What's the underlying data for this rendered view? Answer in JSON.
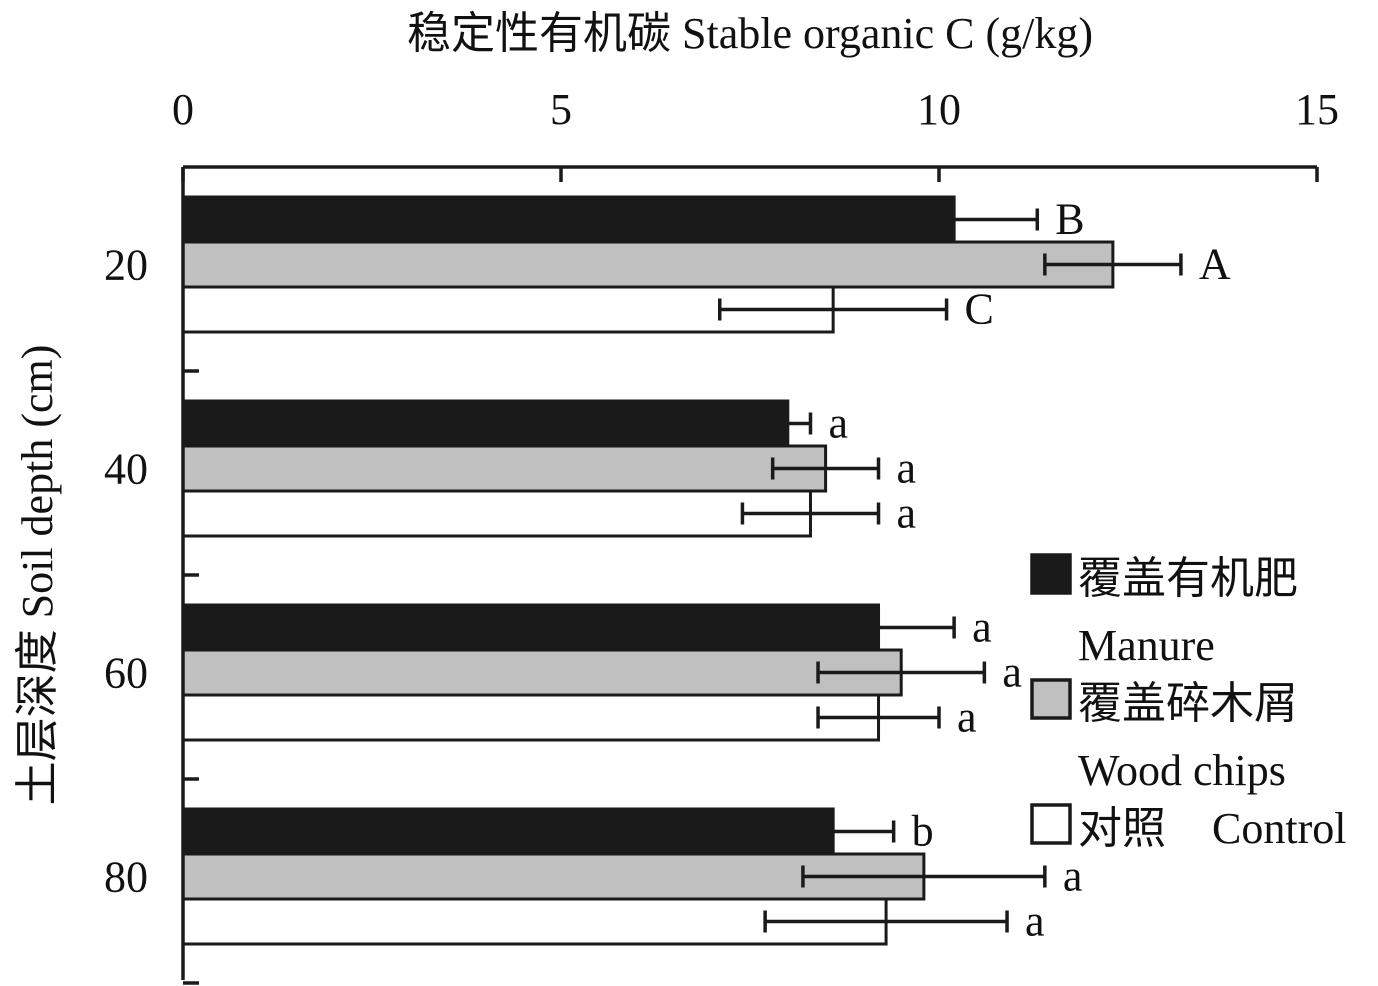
{
  "chart_data": {
    "type": "bar",
    "orientation": "horizontal",
    "title": "",
    "xlabel": "稳定性有机碳 Stable organic C (g/kg)",
    "ylabel": "土层深度 Soil depth (cm)",
    "xlim": [
      0,
      15
    ],
    "x_ticks": [
      "0",
      "5",
      "10",
      "15"
    ],
    "x_axis_position": "top",
    "categories": [
      "20",
      "40",
      "60",
      "80"
    ],
    "grid": false,
    "legend_position": "right",
    "series": [
      {
        "name": "覆盖有机肥 Manure",
        "legend_cn": "覆盖有机肥",
        "legend_en": "Manure",
        "fill": "#1a1a1a",
        "values": [
          10.2,
          8.0,
          9.2,
          8.6
        ],
        "errors": [
          1.1,
          0.3,
          1.0,
          0.8
        ],
        "letters": [
          "B",
          "a",
          "a",
          "b"
        ]
      },
      {
        "name": "覆盖碎木屑 Wood chips",
        "legend_cn": "覆盖碎木屑",
        "legend_en": "Wood chips",
        "fill": "#c0c0c0",
        "values": [
          12.3,
          8.5,
          9.5,
          9.8
        ],
        "errors": [
          0.9,
          0.7,
          1.1,
          1.6
        ],
        "letters": [
          "A",
          "a",
          "a",
          "a"
        ]
      },
      {
        "name": "对照 Control",
        "legend_cn": "对照",
        "legend_en": "Control",
        "fill": "#ffffff",
        "values": [
          8.6,
          8.3,
          9.2,
          9.3
        ],
        "errors": [
          1.5,
          0.9,
          0.8,
          1.6
        ],
        "letters": [
          "C",
          "a",
          "a",
          "a"
        ]
      }
    ]
  }
}
